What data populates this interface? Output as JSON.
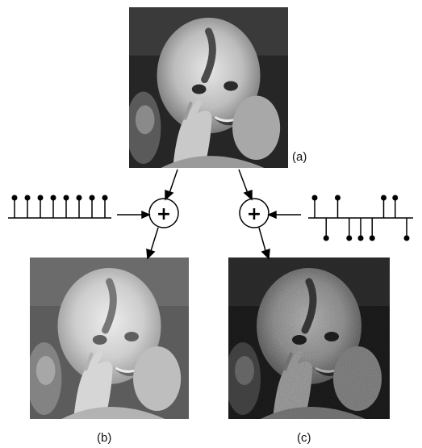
{
  "labels": {
    "a": "(a)",
    "b": "(b)",
    "c": "(c)"
  },
  "operators": {
    "left": "+",
    "right": "+"
  },
  "signals": {
    "constant_offset": {
      "levels": [
        1,
        1,
        1,
        1,
        1,
        1,
        1,
        1
      ]
    },
    "random_noise": {
      "levels": [
        1,
        -1,
        1,
        -1,
        -1,
        -1,
        1,
        1,
        -1
      ]
    }
  },
  "colors": {
    "line": "#000000",
    "photo_mid": "#8a8a8a",
    "photo_dark": "#2a2a2a",
    "photo_light": "#d0d0d0"
  },
  "images": {
    "a": {
      "description_tone": "original",
      "brightness": 0
    },
    "b": {
      "description_tone": "brightened",
      "brightness": 0.25
    },
    "c": {
      "description_tone": "noisy",
      "noise": 0.6
    }
  }
}
